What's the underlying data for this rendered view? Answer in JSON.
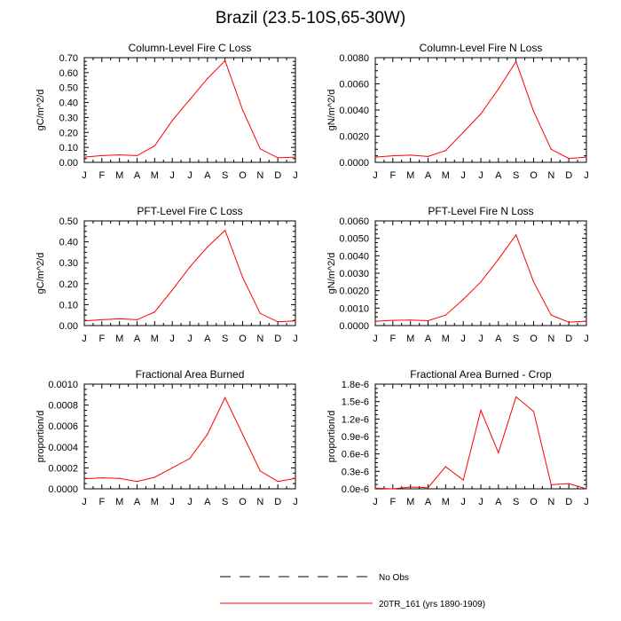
{
  "title": "Brazil (23.5-10S,65-30W)",
  "series_color": "#ff0000",
  "legend": {
    "items": [
      {
        "label": "No Obs",
        "style": "dashed",
        "color": "#000000"
      },
      {
        "label": "20TR_161 (yrs 1890-1909)",
        "style": "solid",
        "color": "#ff0000"
      }
    ]
  },
  "chart_data": [
    {
      "type": "line",
      "title": "Column-Level Fire C Loss",
      "ylabel": "gC/m^2/d",
      "x": [
        "J",
        "F",
        "M",
        "A",
        "M",
        "J",
        "J",
        "A",
        "S",
        "O",
        "N",
        "D",
        "J"
      ],
      "ylim": [
        0,
        0.7
      ],
      "yticks": [
        "0.00",
        "0.10",
        "0.20",
        "0.30",
        "0.40",
        "0.50",
        "0.60",
        "0.70"
      ],
      "series": [
        {
          "values": [
            0.035,
            0.045,
            0.05,
            0.045,
            0.11,
            0.28,
            0.42,
            0.56,
            0.68,
            0.35,
            0.09,
            0.03,
            0.035
          ]
        }
      ]
    },
    {
      "type": "line",
      "title": "Column-Level Fire N Loss",
      "ylabel": "gN/m^2/d",
      "x": [
        "J",
        "F",
        "M",
        "A",
        "M",
        "J",
        "J",
        "A",
        "S",
        "O",
        "N",
        "D",
        "J"
      ],
      "ylim": [
        0,
        0.008
      ],
      "yticks": [
        "0.0000",
        "0.0020",
        "0.0040",
        "0.0060",
        "0.0080"
      ],
      "series": [
        {
          "values": [
            0.0004,
            0.0005,
            0.00055,
            0.00045,
            0.0009,
            0.0023,
            0.0037,
            0.0056,
            0.0077,
            0.0039,
            0.001,
            0.0003,
            0.0004
          ]
        }
      ]
    },
    {
      "type": "line",
      "title": "PFT-Level Fire C Loss",
      "ylabel": "gC/m^2/d",
      "x": [
        "J",
        "F",
        "M",
        "A",
        "M",
        "J",
        "J",
        "A",
        "S",
        "O",
        "N",
        "D",
        "J"
      ],
      "ylim": [
        0,
        0.5
      ],
      "yticks": [
        "0.00",
        "0.10",
        "0.20",
        "0.30",
        "0.40",
        "0.50"
      ],
      "series": [
        {
          "values": [
            0.022,
            0.028,
            0.032,
            0.028,
            0.065,
            0.17,
            0.28,
            0.375,
            0.455,
            0.23,
            0.058,
            0.018,
            0.022
          ]
        }
      ]
    },
    {
      "type": "line",
      "title": "PFT-Level Fire N Loss",
      "ylabel": "gN/m^2/d",
      "x": [
        "J",
        "F",
        "M",
        "A",
        "M",
        "J",
        "J",
        "A",
        "S",
        "O",
        "N",
        "D",
        "J"
      ],
      "ylim": [
        0,
        0.006
      ],
      "yticks": [
        "0.0000",
        "0.0010",
        "0.0020",
        "0.0030",
        "0.0040",
        "0.0050",
        "0.0060"
      ],
      "series": [
        {
          "values": [
            0.00025,
            0.0003,
            0.00032,
            0.00028,
            0.0006,
            0.0015,
            0.0025,
            0.0038,
            0.0052,
            0.0025,
            0.0006,
            0.0002,
            0.00025
          ]
        }
      ]
    },
    {
      "type": "line",
      "title": "Fractional Area Burned",
      "ylabel": "proportion/d",
      "x": [
        "J",
        "F",
        "M",
        "A",
        "M",
        "J",
        "J",
        "A",
        "S",
        "O",
        "N",
        "D",
        "J"
      ],
      "ylim": [
        0,
        0.001
      ],
      "yticks": [
        "0.0000",
        "0.0002",
        "0.0004",
        "0.0006",
        "0.0008",
        "0.0010"
      ],
      "series": [
        {
          "values": [
            9.5e-05,
            0.000105,
            0.0001,
            7e-05,
            0.00011,
            0.0002,
            0.00029,
            0.00052,
            0.00087,
            0.00052,
            0.00017,
            7e-05,
            0.0001
          ]
        }
      ]
    },
    {
      "type": "line",
      "title": "Fractional Area Burned - Crop",
      "ylabel": "proportion/d",
      "x": [
        "J",
        "F",
        "M",
        "A",
        "M",
        "J",
        "J",
        "A",
        "S",
        "O",
        "N",
        "D",
        "J"
      ],
      "ylim": [
        0,
        1.8e-06
      ],
      "yticks": [
        "0.0e-6",
        "0.3e-6",
        "0.6e-6",
        "0.9e-6",
        "1.2e-6",
        "1.5e-6",
        "1.8e-6"
      ],
      "series": [
        {
          "values": [
            1e-08,
            0.0,
            3e-08,
            2e-08,
            3.8e-07,
            1.5e-07,
            1.35e-06,
            6.2e-07,
            1.58e-06,
            1.33e-06,
            7e-08,
            9e-08,
            0.0
          ]
        }
      ]
    }
  ]
}
